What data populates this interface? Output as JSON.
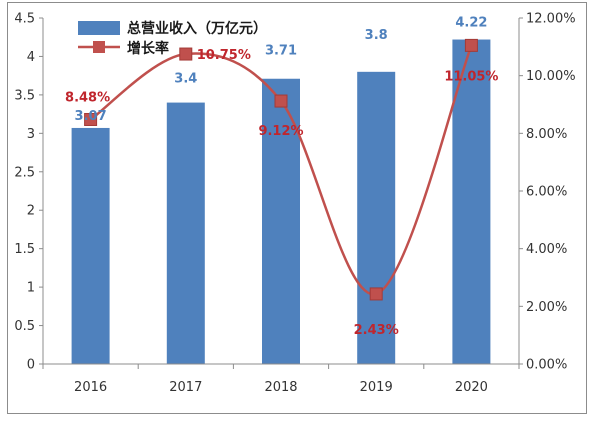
{
  "chart_data": {
    "type": "bar+line",
    "categories": [
      "2016",
      "2017",
      "2018",
      "2019",
      "2020"
    ],
    "series": [
      {
        "name": "总营业收入（万亿元）",
        "type": "bar",
        "axis": "left",
        "values": [
          3.07,
          3.4,
          3.71,
          3.8,
          4.22
        ],
        "labels": [
          "3.07",
          "3.4",
          "3.71",
          "3.8",
          "4.22"
        ],
        "color": "#4f81bd",
        "label_color": "#4f81bd"
      },
      {
        "name": "增长率",
        "type": "line",
        "axis": "right",
        "values": [
          8.48,
          10.75,
          9.12,
          2.43,
          11.05
        ],
        "labels": [
          "8.48%",
          "10.75%",
          "9.12%",
          "2.43%",
          "11.05%"
        ],
        "color": "#c0504d",
        "label_color": "#c0262d"
      }
    ],
    "left_axis": {
      "ylim": [
        0,
        4.5
      ],
      "ticks": [
        "0",
        "0.5",
        "1",
        "1.5",
        "2",
        "2.5",
        "3",
        "3.5",
        "4",
        "4.5"
      ]
    },
    "right_axis": {
      "ylim": [
        0,
        12
      ],
      "ticks": [
        "0.00%",
        "2.00%",
        "4.00%",
        "6.00%",
        "8.00%",
        "10.00%",
        "12.00%"
      ]
    },
    "grid": false,
    "legend_position": "top-left",
    "title": "",
    "xlabel": "",
    "ylabel": ""
  }
}
